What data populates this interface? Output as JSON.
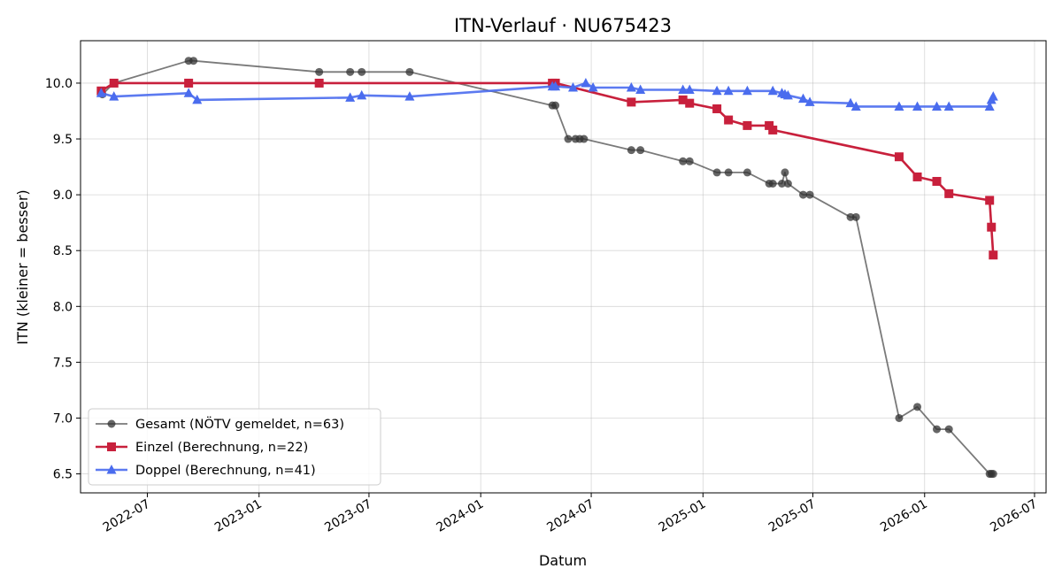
{
  "chart_data": {
    "type": "line",
    "title": "ITN-Verlauf · NU675423",
    "xlabel": "Datum",
    "ylabel": "ITN  (kleiner = besser)",
    "x_axis_type": "date",
    "xlim": [
      "2022-03-13",
      "2026-07-20"
    ],
    "ylim": [
      6.33,
      10.38
    ],
    "x_ticks": [
      "2022-07-01",
      "2023-01-01",
      "2023-07-01",
      "2024-01-01",
      "2024-07-01",
      "2025-01-01",
      "2025-07-01",
      "2026-01-01",
      "2026-07-01"
    ],
    "x_tick_labels": [
      "2022-07",
      "2023-01",
      "2023-07",
      "2024-01",
      "2024-07",
      "2025-01",
      "2025-07",
      "2026-01",
      "2026-07"
    ],
    "y_ticks": [
      6.5,
      7.0,
      7.5,
      8.0,
      8.5,
      9.0,
      9.5,
      10.0
    ],
    "y_tick_labels": [
      "6.5",
      "7.0",
      "7.5",
      "8.0",
      "8.5",
      "9.0",
      "9.5",
      "10.0"
    ],
    "grid": true,
    "legend_position": "lower-left",
    "series": [
      {
        "name": "Gesamt (NÖTV gemeldet, n=63)",
        "color": "#333333",
        "marker": "circle",
        "x": [
          "2022-04-18",
          "2022-05-07",
          "2022-09-07",
          "2022-09-15",
          "2023-04-10",
          "2023-05-31",
          "2023-06-19",
          "2023-09-06",
          "2024-04-28",
          "2024-05-03",
          "2024-05-24",
          "2024-06-05",
          "2024-06-12",
          "2024-06-19",
          "2024-09-05",
          "2024-09-20",
          "2024-11-29",
          "2024-12-10",
          "2025-01-24",
          "2025-02-12",
          "2025-03-15",
          "2025-04-20",
          "2025-04-26",
          "2025-05-11",
          "2025-05-16",
          "2025-05-21",
          "2025-06-15",
          "2025-06-26",
          "2025-09-01",
          "2025-09-10",
          "2025-11-20",
          "2025-12-20",
          "2026-01-21",
          "2026-02-10",
          "2026-04-18",
          "2026-04-21",
          "2026-04-24"
        ],
        "y": [
          9.9,
          10.0,
          10.2,
          10.2,
          10.1,
          10.1,
          10.1,
          10.1,
          9.8,
          9.8,
          9.5,
          9.5,
          9.5,
          9.5,
          9.4,
          9.4,
          9.3,
          9.3,
          9.2,
          9.2,
          9.2,
          9.1,
          9.1,
          9.1,
          9.2,
          9.1,
          9.0,
          9.0,
          8.8,
          8.8,
          7.0,
          7.1,
          6.9,
          6.9,
          6.5,
          6.5,
          6.5
        ]
      },
      {
        "name": "Einzel (Berechnung, n=22)",
        "color": "#c8203c",
        "marker": "square",
        "x": [
          "2022-04-16",
          "2022-05-07",
          "2022-09-07",
          "2023-04-10",
          "2024-04-28",
          "2024-05-03",
          "2024-09-05",
          "2024-11-29",
          "2024-12-10",
          "2025-01-24",
          "2025-02-12",
          "2025-03-15",
          "2025-04-20",
          "2025-04-26",
          "2025-11-20",
          "2025-12-20",
          "2026-01-21",
          "2026-02-10",
          "2026-04-18",
          "2026-04-21",
          "2026-04-24"
        ],
        "y": [
          9.93,
          10.0,
          10.0,
          10.0,
          10.0,
          10.0,
          9.83,
          9.85,
          9.82,
          9.77,
          9.67,
          9.62,
          9.62,
          9.58,
          9.34,
          9.16,
          9.12,
          9.01,
          8.95,
          8.71,
          8.46
        ]
      },
      {
        "name": "Doppel (Berechnung, n=41)",
        "color": "#4a6cee",
        "marker": "triangle",
        "x": [
          "2022-04-16",
          "2022-05-07",
          "2022-09-07",
          "2022-09-21",
          "2023-05-31",
          "2023-06-19",
          "2023-09-06",
          "2024-04-28",
          "2024-05-03",
          "2024-06-01",
          "2024-06-22",
          "2024-07-04",
          "2024-09-05",
          "2024-09-20",
          "2024-11-29",
          "2024-12-10",
          "2025-01-24",
          "2025-02-12",
          "2025-03-15",
          "2025-04-26",
          "2025-05-11",
          "2025-05-16",
          "2025-05-21",
          "2025-06-15",
          "2025-06-26",
          "2025-09-01",
          "2025-09-10",
          "2025-11-20",
          "2025-12-20",
          "2026-01-21",
          "2026-02-10",
          "2026-04-18",
          "2026-04-21",
          "2026-04-24"
        ],
        "y": [
          9.91,
          9.88,
          9.91,
          9.85,
          9.87,
          9.89,
          9.88,
          9.97,
          9.97,
          9.96,
          10.0,
          9.96,
          9.96,
          9.94,
          9.94,
          9.94,
          9.93,
          9.93,
          9.93,
          9.93,
          9.91,
          9.9,
          9.89,
          9.86,
          9.83,
          9.82,
          9.79,
          9.79,
          9.79,
          9.79,
          9.79,
          9.79,
          9.85,
          9.88
        ]
      }
    ]
  }
}
